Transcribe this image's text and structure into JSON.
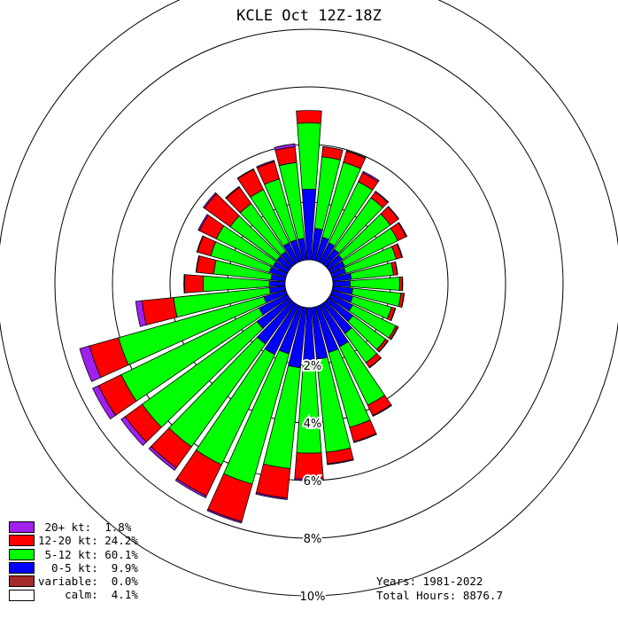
{
  "title": "KCLE Oct 12Z-18Z",
  "chart_data": {
    "type": "windrose",
    "title": "KCLE Oct 12Z-18Z",
    "ring_labels": [
      "2%",
      "4%",
      "6%",
      "8%",
      "10%"
    ],
    "ring_values": [
      2,
      4,
      6,
      8,
      10
    ],
    "calm_percent": 4.1,
    "bins": [
      {
        "name": "0-5 kt",
        "color": "#0000ff"
      },
      {
        "name": "5-12 kt",
        "color": "#00ff00"
      },
      {
        "name": "12-20 kt",
        "color": "#ff0000"
      },
      {
        "name": "20+ kt",
        "color": "#a020f0"
      }
    ],
    "directions": [
      0,
      10,
      20,
      30,
      40,
      50,
      60,
      70,
      80,
      90,
      100,
      110,
      120,
      130,
      140,
      150,
      160,
      170,
      180,
      190,
      200,
      210,
      220,
      230,
      240,
      250,
      260,
      270,
      280,
      290,
      300,
      310,
      320,
      330,
      340,
      350
    ],
    "cumulative_percent": [
      [
        2.45,
        4.75,
        5.18,
        5.18
      ],
      [
        1.1,
        3.6,
        3.95,
        3.95
      ],
      [
        0.85,
        3.55,
        3.95,
        3.97
      ],
      [
        0.75,
        3.1,
        3.45,
        3.5
      ],
      [
        0.65,
        2.85,
        3.1,
        3.13
      ],
      [
        0.6,
        2.65,
        3.0,
        3.02
      ],
      [
        0.55,
        2.6,
        2.92,
        2.95
      ],
      [
        0.5,
        2.32,
        2.52,
        2.55
      ],
      [
        0.65,
        2.12,
        2.25,
        2.27
      ],
      [
        0.6,
        2.32,
        2.42,
        2.43
      ],
      [
        0.7,
        2.38,
        2.49,
        2.5
      ],
      [
        0.75,
        2.15,
        2.28,
        2.3
      ],
      [
        0.85,
        2.52,
        2.6,
        2.62
      ],
      [
        1.05,
        2.45,
        2.55,
        2.57
      ],
      [
        1.3,
        2.55,
        2.75,
        2.77
      ],
      [
        1.6,
        3.85,
        4.25,
        4.28
      ],
      [
        1.65,
        4.35,
        4.87,
        4.9
      ],
      [
        1.8,
        5.05,
        5.45,
        5.48
      ],
      [
        1.9,
        5.05,
        5.95,
        6.0
      ],
      [
        2.1,
        5.62,
        6.65,
        6.7
      ],
      [
        1.7,
        6.4,
        7.75,
        7.8
      ],
      [
        1.9,
        6.15,
        7.35,
        7.42
      ],
      [
        1.75,
        6.15,
        7.05,
        7.15
      ],
      [
        1.4,
        6.32,
        7.05,
        7.22
      ],
      [
        1.1,
        6.42,
        7.3,
        7.52
      ],
      [
        0.8,
        6.05,
        7.1,
        7.45
      ],
      [
        0.55,
        3.9,
        5.0,
        5.22
      ],
      [
        0.55,
        2.85,
        3.5,
        3.52
      ],
      [
        0.5,
        2.5,
        3.1,
        3.12
      ],
      [
        0.6,
        2.72,
        3.2,
        3.22
      ],
      [
        0.55,
        2.75,
        3.4,
        3.45
      ],
      [
        0.55,
        2.55,
        3.65,
        3.7
      ],
      [
        0.55,
        2.6,
        3.3,
        3.33
      ],
      [
        0.75,
        2.8,
        3.58,
        3.6
      ],
      [
        0.75,
        2.95,
        3.58,
        3.62
      ],
      [
        0.75,
        3.4,
        3.95,
        4.05
      ]
    ]
  },
  "legend": [
    {
      "label": " 20+ kt:  1.8%",
      "color": "#a020f0"
    },
    {
      "label": "12-20 kt: 24.2%",
      "color": "#ff0000"
    },
    {
      "label": " 5-12 kt: 60.1%",
      "color": "#00ff00"
    },
    {
      "label": "  0-5 kt:  9.9%",
      "color": "#0000ff"
    },
    {
      "label": "variable:  0.0%",
      "color": "#a52a2a"
    },
    {
      "label": "    calm:  4.1%",
      "color": "#ffffff"
    }
  ],
  "footer": {
    "years": "Years: 1981-2022",
    "total_hours": "Total Hours: 8876.7"
  }
}
